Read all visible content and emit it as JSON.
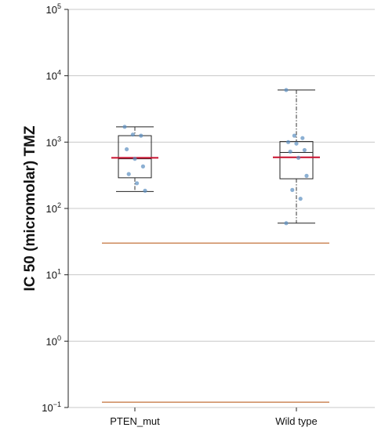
{
  "chart_data": {
    "type": "box",
    "ylabel": "IC 50 (micromolar) TMZ",
    "xlabel": "",
    "yscale": "log",
    "ylim": [
      0.1,
      100000
    ],
    "y_ticks": [
      {
        "value": 0.1,
        "base": "10",
        "exp": "−1"
      },
      {
        "value": 1,
        "base": "10",
        "exp": "0"
      },
      {
        "value": 10,
        "base": "10",
        "exp": "1"
      },
      {
        "value": 100,
        "base": "10",
        "exp": "2"
      },
      {
        "value": 1000,
        "base": "10",
        "exp": "3"
      },
      {
        "value": 10000,
        "base": "10",
        "exp": "4"
      },
      {
        "value": 100000,
        "base": "10",
        "exp": "5"
      }
    ],
    "grid": "horizontal",
    "categories": [
      "PTEN_mut",
      "Wild type"
    ],
    "boxes": [
      {
        "category": "PTEN_mut",
        "whisker_low": 180,
        "q1": 290,
        "median": 560,
        "q3": 1250,
        "whisker_high": 1700,
        "mean_line": 580,
        "points": [
          1700,
          1300,
          1250,
          780,
          560,
          430,
          330,
          240,
          185
        ]
      },
      {
        "category": "Wild type",
        "whisker_low": 60,
        "q1": 280,
        "median": 700,
        "q3": 1020,
        "whisker_high": 6100,
        "mean_line": 590,
        "points": [
          6100,
          1250,
          1150,
          1000,
          950,
          760,
          720,
          580,
          310,
          190,
          140,
          60
        ]
      }
    ],
    "reference_lines": [
      30,
      0.12
    ],
    "colors": {
      "mean_line": "#c8102e",
      "reference_line": "#cd8a5c",
      "points": "#5b8fc0",
      "box": "#222222",
      "grid": "#c8c8c8"
    }
  }
}
